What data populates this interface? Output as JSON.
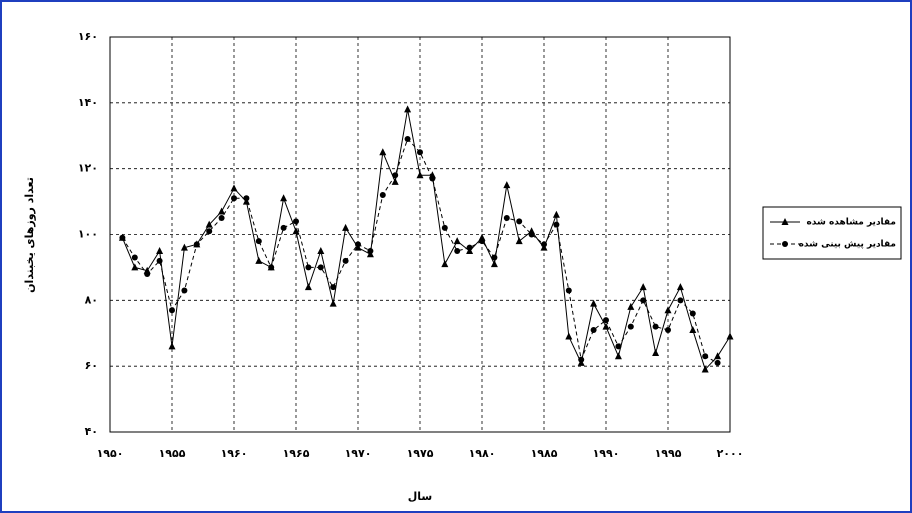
{
  "chart_data": {
    "type": "line",
    "x_label": "سال",
    "y_label": "تعداد روزهای یخبندان",
    "x": [
      1951,
      1952,
      1953,
      1954,
      1955,
      1956,
      1957,
      1958,
      1959,
      1960,
      1961,
      1962,
      1963,
      1964,
      1965,
      1966,
      1967,
      1968,
      1969,
      1970,
      1971,
      1972,
      1973,
      1974,
      1975,
      1976,
      1977,
      1978,
      1979,
      1980,
      1981,
      1982,
      1983,
      1984,
      1985,
      1986,
      1987,
      1988,
      1989,
      1990,
      1991,
      1992,
      1993,
      1994,
      1995,
      1996,
      1997,
      1998,
      1999,
      2000
    ],
    "series": [
      {
        "name": "مقادیر مشاهده شده",
        "color": "#000000",
        "line_style": "solid",
        "marker": "triangle",
        "values": [
          99,
          90,
          89,
          95,
          66,
          96,
          97,
          103,
          107,
          114,
          110,
          92,
          90,
          111,
          101,
          84,
          95,
          79,
          102,
          96,
          94,
          125,
          116,
          138,
          118,
          118,
          91,
          98,
          95,
          99,
          91,
          115,
          98,
          101,
          96,
          106,
          69,
          61,
          79,
          72,
          63,
          78,
          84,
          64,
          77,
          84,
          71,
          59,
          63,
          69
        ]
      },
      {
        "name": "مقادیر پیش بینی شده",
        "color": "#000000",
        "line_style": "dashed",
        "marker": "circle",
        "values": [
          99,
          93,
          88,
          92,
          77,
          83,
          97,
          101,
          105,
          111,
          111,
          98,
          90,
          102,
          104,
          90,
          90,
          84,
          92,
          97,
          95,
          112,
          118,
          129,
          125,
          117,
          102,
          95,
          96,
          98,
          93,
          105,
          104,
          100,
          97,
          103,
          83,
          62,
          71,
          74,
          66,
          72,
          80,
          72,
          71,
          80,
          76,
          63,
          61,
          null
        ]
      }
    ],
    "xlim": [
      1950,
      2000
    ],
    "xticks": [
      {
        "value": 1950,
        "label": "۱۹۵۰"
      },
      {
        "value": 1955,
        "label": "۱۹۵۵"
      },
      {
        "value": 1960,
        "label": "۱۹۶۰"
      },
      {
        "value": 1965,
        "label": "۱۹۶۵"
      },
      {
        "value": 1970,
        "label": "۱۹۷۰"
      },
      {
        "value": 1975,
        "label": "۱۹۷۵"
      },
      {
        "value": 1980,
        "label": "۱۹۸۰"
      },
      {
        "value": 1985,
        "label": "۱۹۸۵"
      },
      {
        "value": 1990,
        "label": "۱۹۹۰"
      },
      {
        "value": 1995,
        "label": "۱۹۹۵"
      },
      {
        "value": 2000,
        "label": "۲۰۰۰"
      }
    ],
    "ylim": [
      40,
      160
    ],
    "yticks": [
      {
        "value": 40,
        "label": "۴۰"
      },
      {
        "value": 60,
        "label": "۶۰"
      },
      {
        "value": 80,
        "label": "۸۰"
      },
      {
        "value": 100,
        "label": "۱۰۰"
      },
      {
        "value": 120,
        "label": "۱۲۰"
      },
      {
        "value": 140,
        "label": "۱۴۰"
      },
      {
        "value": 160,
        "label": "۱۶۰"
      }
    ],
    "grid": true,
    "legend": "right"
  }
}
